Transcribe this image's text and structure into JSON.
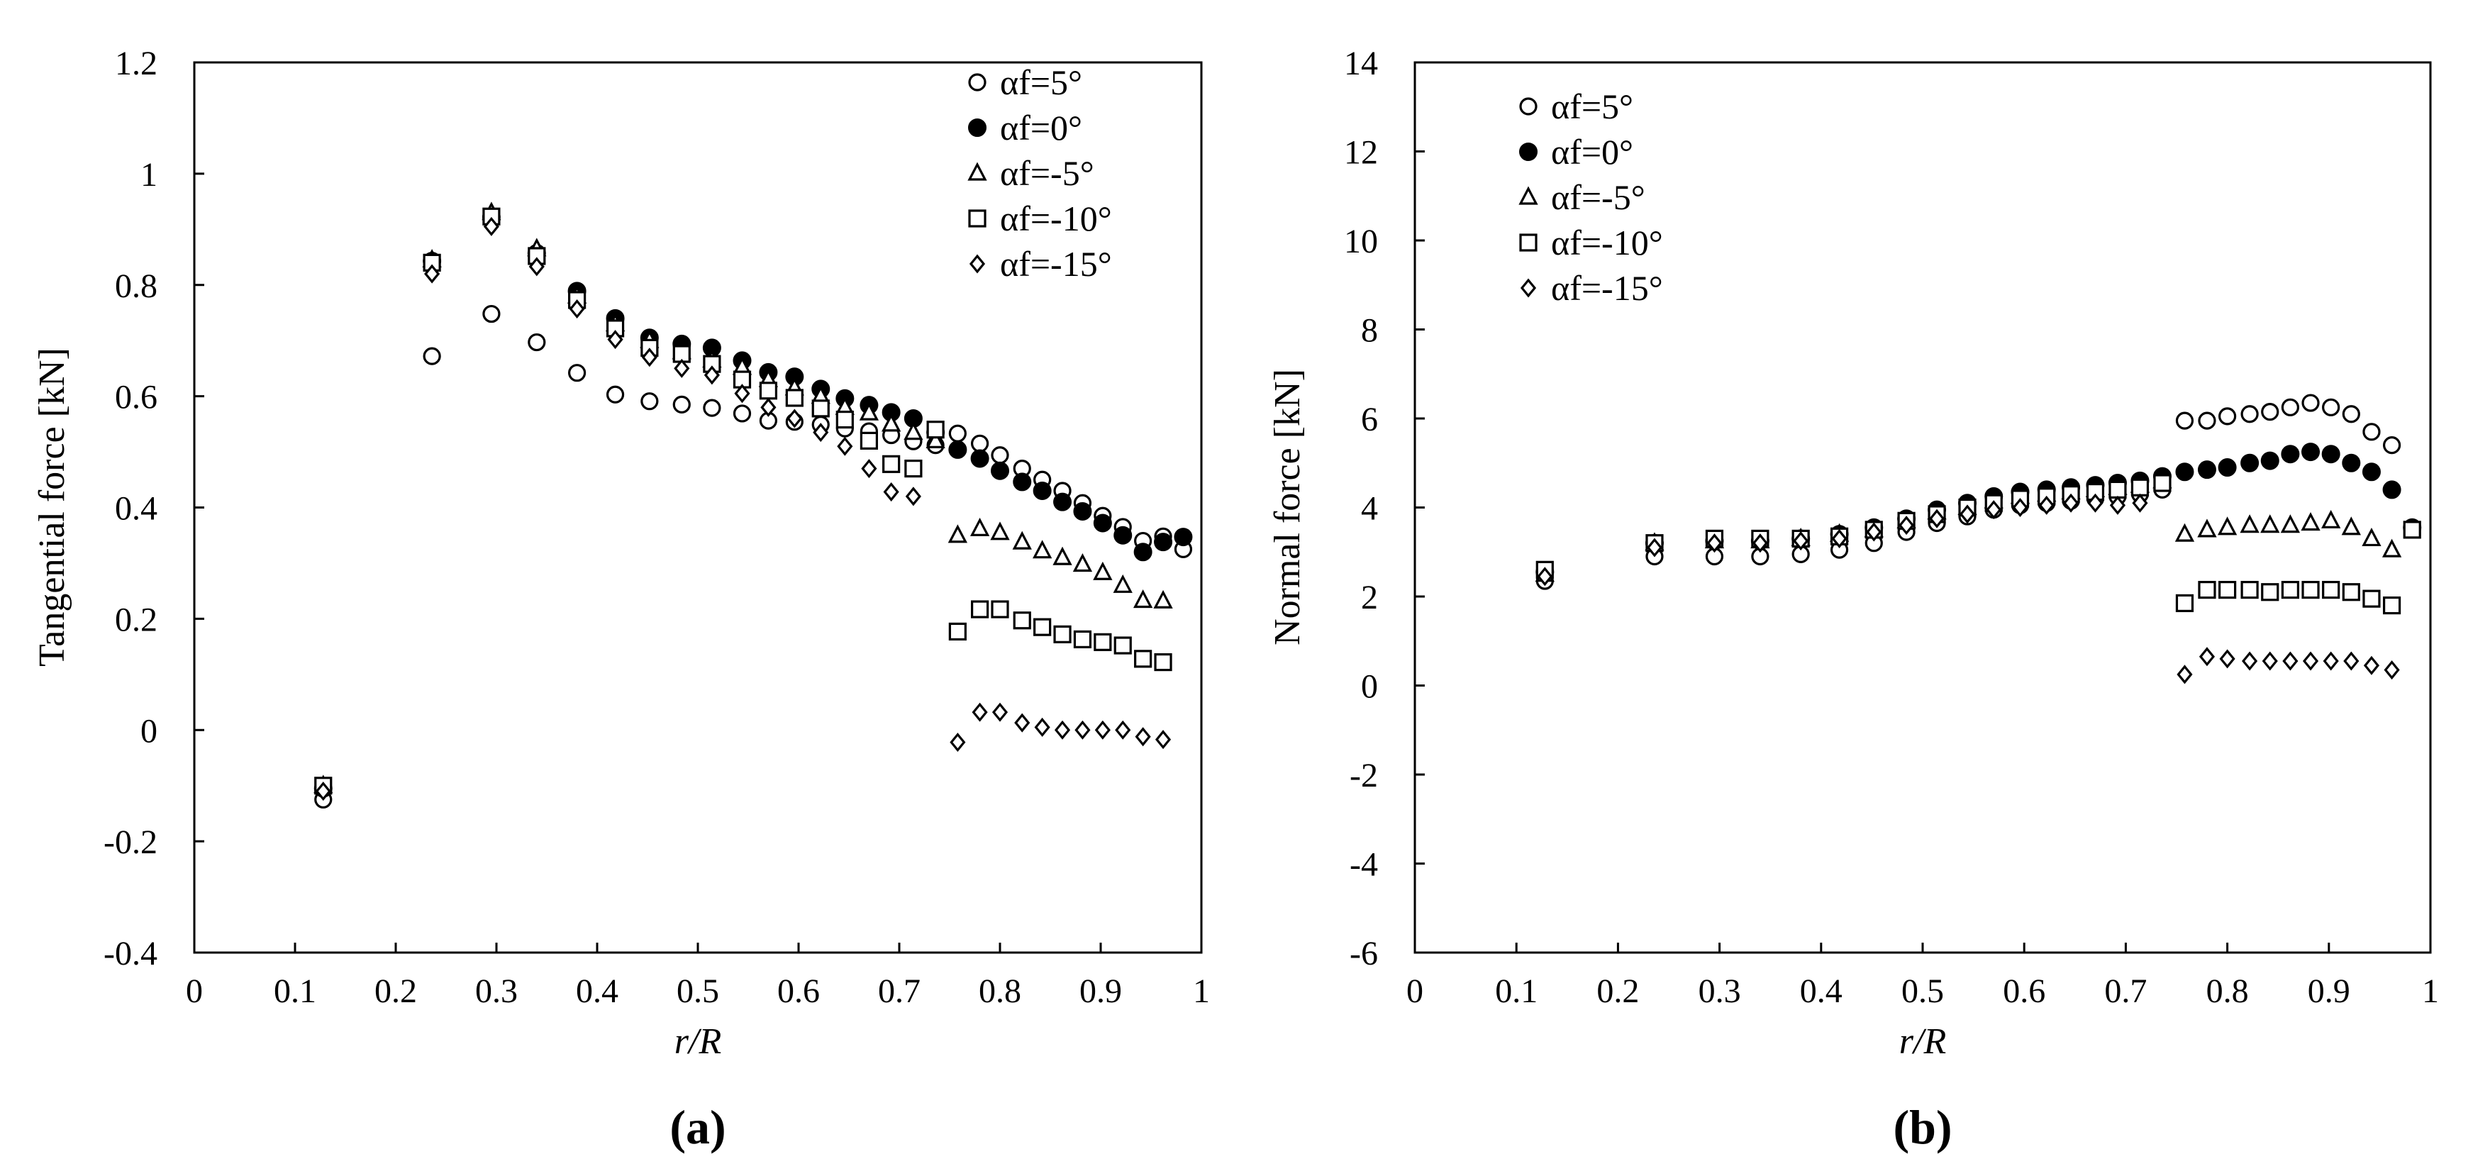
{
  "figure": {
    "panels": [
      "(a)",
      "(b)"
    ]
  },
  "chart_data": [
    {
      "type": "scatter",
      "panel_label": "(a)",
      "xlabel": "r/R",
      "ylabel": "Tangential force [kN]",
      "xlim": [
        0,
        1
      ],
      "ylim": [
        -0.4,
        1.2
      ],
      "xticks": [
        0,
        0.1,
        0.2,
        0.3,
        0.4,
        0.5,
        0.6,
        0.7,
        0.8,
        0.9,
        1
      ],
      "xtick_labels": [
        "0",
        "0.1",
        "0.2",
        "0.3",
        "0.4",
        "0.5",
        "0.6",
        "0.7",
        "0.8",
        "0.9",
        "1"
      ],
      "yticks": [
        -0.4,
        -0.2,
        0,
        0.2,
        0.4,
        0.6,
        0.8,
        1,
        1.2
      ],
      "ytick_labels": [
        "-0.4",
        "-0.2",
        "0",
        "0.2",
        "0.4",
        "0.6",
        "0.8",
        "1",
        "1.2"
      ],
      "grid": false,
      "legend_position": "top-right",
      "series": [
        {
          "name": "αf=5°",
          "marker": "circle-open",
          "x": [
            0.128,
            0.236,
            0.295,
            0.34,
            0.38,
            0.418,
            0.452,
            0.484,
            0.514,
            0.544,
            0.57,
            0.596,
            0.622,
            0.646,
            0.67,
            0.692,
            0.714,
            0.736,
            0.758,
            0.78,
            0.8,
            0.822,
            0.842,
            0.862,
            0.882,
            0.902,
            0.922,
            0.942,
            0.962,
            0.982
          ],
          "y": [
            -0.125,
            0.672,
            0.748,
            0.697,
            0.642,
            0.603,
            0.591,
            0.585,
            0.579,
            0.569,
            0.556,
            0.554,
            0.549,
            0.542,
            0.537,
            0.53,
            0.519,
            0.512,
            0.533,
            0.515,
            0.494,
            0.47,
            0.45,
            0.43,
            0.408,
            0.385,
            0.365,
            0.34,
            0.348,
            0.325
          ]
        },
        {
          "name": "αf=0°",
          "marker": "circle-filled",
          "x": [
            0.128,
            0.236,
            0.295,
            0.34,
            0.38,
            0.418,
            0.452,
            0.484,
            0.514,
            0.544,
            0.57,
            0.596,
            0.622,
            0.646,
            0.67,
            0.692,
            0.714,
            0.736,
            0.758,
            0.78,
            0.8,
            0.822,
            0.842,
            0.862,
            0.882,
            0.902,
            0.922,
            0.942,
            0.962,
            0.982
          ],
          "y": [
            -0.105,
            0.843,
            0.922,
            0.857,
            0.789,
            0.74,
            0.705,
            0.694,
            0.687,
            0.664,
            0.643,
            0.635,
            0.613,
            0.596,
            0.584,
            0.571,
            0.56,
            0.535,
            0.504,
            0.488,
            0.466,
            0.446,
            0.43,
            0.41,
            0.393,
            0.372,
            0.35,
            0.32,
            0.338,
            0.347
          ]
        },
        {
          "name": "αf=-5°",
          "marker": "triangle-open",
          "x": [
            0.128,
            0.236,
            0.295,
            0.34,
            0.38,
            0.418,
            0.452,
            0.484,
            0.514,
            0.544,
            0.57,
            0.596,
            0.622,
            0.646,
            0.67,
            0.692,
            0.714,
            0.736,
            0.758,
            0.78,
            0.8,
            0.822,
            0.842,
            0.862,
            0.882,
            0.902,
            0.922,
            0.942,
            0.962,
            0.982
          ],
          "y": [
            -0.1,
            0.845,
            0.93,
            0.865,
            0.78,
            0.73,
            0.7,
            0.68,
            0.665,
            0.652,
            0.63,
            0.615,
            0.6,
            0.58,
            0.57,
            0.55,
            0.535,
            0.52,
            0.35,
            0.362,
            0.355,
            0.338,
            0.322,
            0.31,
            0.298,
            0.283,
            0.26,
            0.233,
            0.232,
            null
          ]
        },
        {
          "name": "αf=-10°",
          "marker": "square-open",
          "x": [
            0.128,
            0.236,
            0.295,
            0.34,
            0.38,
            0.418,
            0.452,
            0.484,
            0.514,
            0.544,
            0.57,
            0.596,
            0.622,
            0.646,
            0.67,
            0.692,
            0.714,
            0.736,
            0.758,
            0.78,
            0.8,
            0.822,
            0.842,
            0.862,
            0.882,
            0.902,
            0.922,
            0.942,
            0.962,
            0.982
          ],
          "y": [
            -0.1,
            0.84,
            0.923,
            0.852,
            0.773,
            0.722,
            0.687,
            0.676,
            0.658,
            0.63,
            0.61,
            0.597,
            0.578,
            0.558,
            0.52,
            0.478,
            0.47,
            0.54,
            0.177,
            0.217,
            0.217,
            0.197,
            0.185,
            0.172,
            0.163,
            0.158,
            0.152,
            0.128,
            0.122,
            null
          ]
        },
        {
          "name": "αf=-15°",
          "marker": "diamond-open",
          "x": [
            0.128,
            0.236,
            0.295,
            0.34,
            0.38,
            0.418,
            0.452,
            0.484,
            0.514,
            0.544,
            0.57,
            0.596,
            0.622,
            0.646,
            0.67,
            0.692,
            0.714,
            0.736,
            0.758,
            0.78,
            0.8,
            0.822,
            0.842,
            0.862,
            0.882,
            0.902,
            0.922,
            0.942,
            0.962,
            0.982
          ],
          "y": [
            -0.11,
            0.82,
            0.905,
            0.833,
            0.757,
            0.702,
            0.67,
            0.65,
            0.638,
            0.605,
            0.58,
            0.56,
            0.535,
            0.51,
            0.47,
            0.428,
            0.42,
            null,
            -0.022,
            0.032,
            0.032,
            0.013,
            0.005,
            0.0,
            0.0,
            0.0,
            0.0,
            -0.012,
            -0.017,
            null
          ]
        }
      ]
    },
    {
      "type": "scatter",
      "panel_label": "(b)",
      "xlabel": "r/R",
      "ylabel": "Normal  force [kN]",
      "xlim": [
        0,
        1
      ],
      "ylim": [
        -6,
        14
      ],
      "xticks": [
        0,
        0.1,
        0.2,
        0.3,
        0.4,
        0.5,
        0.6,
        0.7,
        0.8,
        0.9,
        1
      ],
      "xtick_labels": [
        "0",
        "0.1",
        "0.2",
        "0.3",
        "0.4",
        "0.5",
        "0.6",
        "0.7",
        "0.8",
        "0.9",
        "1"
      ],
      "yticks": [
        -6,
        -4,
        -2,
        0,
        2,
        4,
        6,
        8,
        10,
        12,
        14
      ],
      "ytick_labels": [
        "-6",
        "-4",
        "-2",
        "0",
        "2",
        "4",
        "6",
        "8",
        "10",
        "12",
        "14"
      ],
      "grid": false,
      "legend_position": "top-left",
      "series": [
        {
          "name": "αf=5°",
          "marker": "circle-open",
          "x": [
            0.128,
            0.236,
            0.295,
            0.34,
            0.38,
            0.418,
            0.452,
            0.484,
            0.514,
            0.544,
            0.57,
            0.596,
            0.622,
            0.646,
            0.67,
            0.692,
            0.714,
            0.736,
            0.758,
            0.78,
            0.8,
            0.822,
            0.842,
            0.862,
            0.882,
            0.902,
            0.922,
            0.942,
            0.962,
            0.982
          ],
          "y": [
            2.35,
            2.9,
            2.9,
            2.9,
            2.95,
            3.05,
            3.2,
            3.45,
            3.65,
            3.8,
            3.95,
            4.05,
            4.1,
            4.15,
            4.2,
            4.25,
            4.3,
            4.4,
            5.95,
            5.95,
            6.05,
            6.1,
            6.15,
            6.25,
            6.35,
            6.25,
            6.1,
            5.7,
            5.4,
            null
          ]
        },
        {
          "name": "αf=0°",
          "marker": "circle-filled",
          "x": [
            0.128,
            0.236,
            0.295,
            0.34,
            0.38,
            0.418,
            0.452,
            0.484,
            0.514,
            0.544,
            0.57,
            0.596,
            0.622,
            0.646,
            0.67,
            0.692,
            0.714,
            0.736,
            0.758,
            0.78,
            0.8,
            0.822,
            0.842,
            0.862,
            0.882,
            0.902,
            0.922,
            0.942,
            0.962,
            0.982
          ],
          "y": [
            2.55,
            3.2,
            3.25,
            3.25,
            3.3,
            3.4,
            3.55,
            3.75,
            3.95,
            4.1,
            4.25,
            4.35,
            4.4,
            4.45,
            4.5,
            4.55,
            4.6,
            4.7,
            4.8,
            4.85,
            4.9,
            5.0,
            5.05,
            5.2,
            5.25,
            5.2,
            5.0,
            4.8,
            4.4,
            3.55
          ]
        },
        {
          "name": "αf=-5°",
          "marker": "triangle-open",
          "x": [
            0.128,
            0.236,
            0.295,
            0.34,
            0.38,
            0.418,
            0.452,
            0.484,
            0.514,
            0.544,
            0.57,
            0.596,
            0.622,
            0.646,
            0.67,
            0.692,
            0.714,
            0.736,
            0.758,
            0.78,
            0.8,
            0.822,
            0.842,
            0.862,
            0.882,
            0.902,
            0.922,
            0.942,
            0.962,
            0.982
          ],
          "y": [
            2.5,
            3.2,
            3.25,
            3.25,
            3.3,
            3.4,
            3.5,
            3.7,
            3.9,
            4.0,
            4.15,
            4.25,
            4.3,
            4.35,
            4.4,
            4.45,
            4.5,
            4.6,
            3.4,
            3.5,
            3.55,
            3.6,
            3.6,
            3.6,
            3.65,
            3.7,
            3.55,
            3.3,
            3.05,
            null
          ]
        },
        {
          "name": "αf=-10°",
          "marker": "square-open",
          "x": [
            0.128,
            0.236,
            0.295,
            0.34,
            0.38,
            0.418,
            0.452,
            0.484,
            0.514,
            0.544,
            0.57,
            0.596,
            0.622,
            0.646,
            0.67,
            0.692,
            0.714,
            0.736,
            0.758,
            0.78,
            0.8,
            0.822,
            0.842,
            0.862,
            0.882,
            0.902,
            0.922,
            0.942,
            0.962,
            0.982
          ],
          "y": [
            2.6,
            3.2,
            3.3,
            3.3,
            3.3,
            3.35,
            3.5,
            3.7,
            3.85,
            4.0,
            4.1,
            4.2,
            4.25,
            4.3,
            4.35,
            4.4,
            4.45,
            4.55,
            1.85,
            2.15,
            2.15,
            2.15,
            2.1,
            2.15,
            2.15,
            2.15,
            2.1,
            1.95,
            1.8,
            3.5
          ]
        },
        {
          "name": "αf=-15°",
          "marker": "diamond-open",
          "x": [
            0.128,
            0.236,
            0.295,
            0.34,
            0.38,
            0.418,
            0.452,
            0.484,
            0.514,
            0.544,
            0.57,
            0.596,
            0.622,
            0.646,
            0.67,
            0.692,
            0.714,
            0.736,
            0.758,
            0.78,
            0.8,
            0.822,
            0.842,
            0.862,
            0.882,
            0.902,
            0.922,
            0.942,
            0.962,
            0.982
          ],
          "y": [
            2.45,
            3.1,
            3.2,
            3.2,
            3.25,
            3.3,
            3.45,
            3.6,
            3.75,
            3.85,
            3.95,
            4.0,
            4.05,
            4.1,
            4.1,
            4.05,
            4.1,
            null,
            0.25,
            0.65,
            0.6,
            0.55,
            0.55,
            0.55,
            0.55,
            0.55,
            0.55,
            0.45,
            0.35,
            null
          ]
        }
      ]
    }
  ]
}
